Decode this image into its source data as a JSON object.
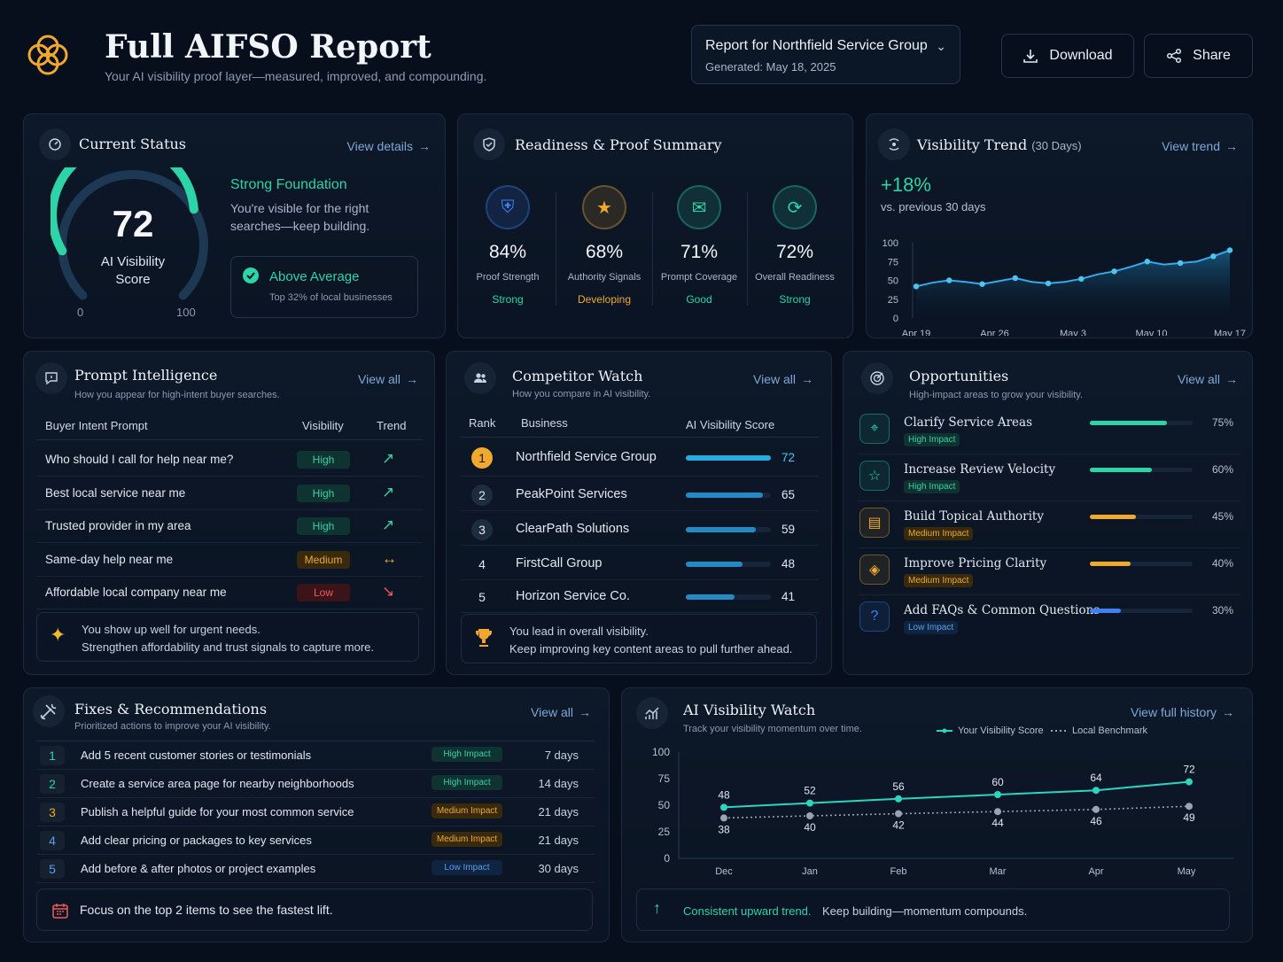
{
  "header": {
    "title": "Full AIFSO Report",
    "subtitle": "Your AI visibility proof layer—measured, improved, and compounding.",
    "report_select": "Report for Northfield Service Group",
    "generated": "Generated: May 18, 2025",
    "download_label": "Download",
    "share_label": "Share"
  },
  "status": {
    "title": "Current Status",
    "link": "View details",
    "score": "72",
    "score_label_1": "AI Visibility",
    "score_label_2": "Score",
    "min": "0",
    "max": "100",
    "score_fraction": 0.72,
    "heading": "Strong Foundation",
    "desc_1": "You're visible for the right",
    "desc_2": "searches—keep building.",
    "badge_title": "Above Average",
    "badge_sub": "Top 32% of local businesses"
  },
  "readiness": {
    "title": "Readiness & Proof Summary",
    "items": [
      {
        "value": "84%",
        "label": "Proof Strength",
        "status": "Strong",
        "icon": "shield-icon",
        "color": "#3b82f6"
      },
      {
        "value": "68%",
        "label": "Authority Signals",
        "status": "Developing",
        "icon": "star-icon",
        "color": "#f0a830"
      },
      {
        "value": "71%",
        "label": "Prompt Coverage",
        "status": "Good",
        "icon": "chat-icon",
        "color": "#2dd4a7"
      },
      {
        "value": "72%",
        "label": "Overall Readiness",
        "status": "Strong",
        "icon": "refresh-icon",
        "color": "#2dd4a7"
      }
    ]
  },
  "trend": {
    "title": "Visibility Trend",
    "title_suffix": "(30 Days)",
    "link": "View trend",
    "delta": "+18%",
    "delta_sub": "vs. previous 30 days",
    "y_ticks": [
      "100",
      "75",
      "50",
      "25",
      "0"
    ],
    "x_ticks": [
      "Apr 19",
      "Apr 26",
      "May 3",
      "May 10",
      "May 17"
    ],
    "values": [
      42,
      47,
      50,
      48,
      45,
      49,
      53,
      48,
      46,
      48,
      52,
      58,
      62,
      68,
      75,
      71,
      73,
      75,
      82,
      90
    ]
  },
  "prompt": {
    "title": "Prompt Intelligence",
    "subtitle": "How you appear for high-intent buyer searches.",
    "link": "View all",
    "col_prompt": "Buyer Intent Prompt",
    "col_visibility": "Visibility",
    "col_trend": "Trend",
    "rows": [
      {
        "prompt": "Who should I call for help near me?",
        "visibility": "High",
        "level": "hi",
        "trend": "↗"
      },
      {
        "prompt": "Best local service near me",
        "visibility": "High",
        "level": "hi",
        "trend": "↗"
      },
      {
        "prompt": "Trusted provider in my area",
        "visibility": "High",
        "level": "hi",
        "trend": "↗"
      },
      {
        "prompt": "Same-day help near me",
        "visibility": "Medium",
        "level": "med",
        "trend": "↔"
      },
      {
        "prompt": "Affordable local company near me",
        "visibility": "Low",
        "level": "low",
        "trend": "↘"
      }
    ],
    "note_1": "You show up well for urgent needs.",
    "note_2": "Strengthen affordability and trust signals to capture more."
  },
  "competitor": {
    "title": "Competitor Watch",
    "subtitle": "How you compare in AI visibility.",
    "link": "View all",
    "col_rank": "Rank",
    "col_business": "Business",
    "col_score": "AI Visibility Score",
    "rows": [
      {
        "rank": "1",
        "business": "Northfield Service Group",
        "score": "72",
        "value": 72
      },
      {
        "rank": "2",
        "business": "PeakPoint Services",
        "score": "65",
        "value": 65
      },
      {
        "rank": "3",
        "business": "ClearPath Solutions",
        "score": "59",
        "value": 59
      },
      {
        "rank": "4",
        "business": "FirstCall Group",
        "score": "48",
        "value": 48
      },
      {
        "rank": "5",
        "business": "Horizon Service Co.",
        "score": "41",
        "value": 41
      }
    ],
    "note_1": "You lead in overall visibility.",
    "note_2": "Keep improving key content areas to pull further ahead."
  },
  "opportunities": {
    "title": "Opportunities",
    "subtitle": "High-impact areas to grow your visibility.",
    "link": "View all",
    "items": [
      {
        "name": "Clarify Service Areas",
        "impact": "High Impact",
        "level": "hi",
        "pct": "75%",
        "value": 75,
        "color": "#2dd4a7",
        "icon": "map-pin-icon"
      },
      {
        "name": "Increase Review Velocity",
        "impact": "High Impact",
        "level": "hi",
        "pct": "60%",
        "value": 60,
        "color": "#2dd4a7",
        "icon": "star-outline-icon"
      },
      {
        "name": "Build Topical Authority",
        "impact": "Medium Impact",
        "level": "med",
        "pct": "45%",
        "value": 45,
        "color": "#f0a830",
        "icon": "book-icon"
      },
      {
        "name": "Improve Pricing Clarity",
        "impact": "Medium Impact",
        "level": "med",
        "pct": "40%",
        "value": 40,
        "color": "#f0a830",
        "icon": "price-tag-icon"
      },
      {
        "name": "Add FAQs & Common Questions",
        "impact": "Low Impact",
        "level": "lowb",
        "pct": "30%",
        "value": 30,
        "color": "#3b82f6",
        "icon": "question-icon"
      }
    ]
  },
  "fixes": {
    "title": "Fixes & Recommendations",
    "subtitle": "Prioritized actions to improve your AI visibility.",
    "link": "View all",
    "rows": [
      {
        "num": "1",
        "text": "Add 5 recent customer stories or testimonials",
        "impact": "High Impact",
        "level": "hi",
        "days": "7 days",
        "numcolor": "#2dd4a7"
      },
      {
        "num": "2",
        "text": "Create a service area page for nearby neighborhoods",
        "impact": "High Impact",
        "level": "hi",
        "days": "14 days",
        "numcolor": "#2dd4a7"
      },
      {
        "num": "3",
        "text": "Publish a helpful guide for your most common service",
        "impact": "Medium Impact",
        "level": "med",
        "days": "21 days",
        "numcolor": "#f0a830"
      },
      {
        "num": "4",
        "text": "Add clear pricing or packages to key services",
        "impact": "Medium Impact",
        "level": "med",
        "days": "21 days",
        "numcolor": "#5b9ee8"
      },
      {
        "num": "5",
        "text": "Add before & after photos or project examples",
        "impact": "Low Impact",
        "level": "lowb",
        "days": "30 days",
        "numcolor": "#5b9ee8"
      }
    ],
    "note": "Focus on the top 2 items to see the fastest lift."
  },
  "watch": {
    "title": "AI Visibility Watch",
    "subtitle": "Track your visibility momentum over time.",
    "link": "View full history",
    "legend_you": "Your Visibility Score",
    "legend_bench": "Local Benchmark",
    "note_strong": "Consistent upward trend.",
    "note_rest": "Keep building—momentum compounds."
  },
  "chart_data": {
    "type": "line",
    "x": [
      "Dec",
      "Jan",
      "Feb",
      "Mar",
      "Apr",
      "May"
    ],
    "y_ticks": [
      "100",
      "75",
      "50",
      "25",
      "0"
    ],
    "ylim": [
      0,
      100
    ],
    "series": [
      {
        "name": "Your Visibility Score",
        "values": [
          48,
          52,
          56,
          60,
          64,
          72
        ],
        "color": "#2dd4bf"
      },
      {
        "name": "Local Benchmark",
        "values": [
          38,
          40,
          42,
          44,
          46,
          49
        ],
        "color": "#9aa3b2"
      }
    ]
  }
}
